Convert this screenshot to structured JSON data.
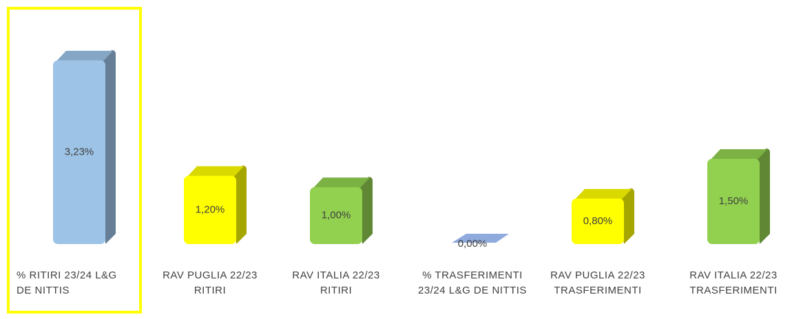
{
  "chart_data": {
    "type": "bar3d",
    "categories": [
      "% RITIRI 23/24 L&G DE NITTIS",
      "RAV PUGLIA 22/23 RITIRI",
      "RAV ITALIA 22/23 RITIRI",
      "% TRASFERIMENTI 23/24 L&G DE NITTIS",
      "RAV PUGLIA 22/23 TRASFERIMENTI",
      "RAV ITALIA 22/23 TRASFERIMENTI"
    ],
    "values": [
      3.23,
      1.2,
      1.0,
      0.0,
      0.8,
      1.5
    ],
    "value_labels": [
      "3,23%",
      "1,20%",
      "1,00%",
      "0,00%",
      "0,80%",
      "1,50%"
    ],
    "colors": [
      "#9dc3e6",
      "#ffff00",
      "#92d050",
      "#8faadc",
      "#ffff00",
      "#92d050"
    ]
  }
}
